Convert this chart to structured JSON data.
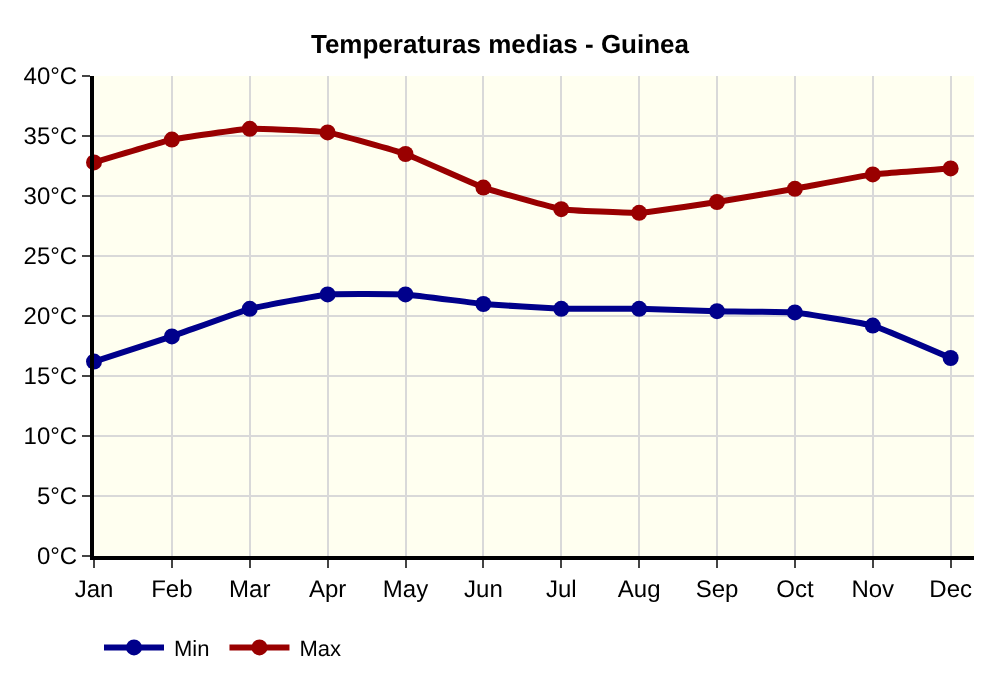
{
  "chart_data": {
    "type": "line",
    "title": "Temperaturas medias - Guinea",
    "categories": [
      "Jan",
      "Feb",
      "Mar",
      "Apr",
      "May",
      "Jun",
      "Jul",
      "Aug",
      "Sep",
      "Oct",
      "Nov",
      "Dec"
    ],
    "series": [
      {
        "name": "Min",
        "color": "#00008b",
        "values": [
          16.2,
          18.3,
          20.6,
          21.8,
          21.8,
          21.0,
          20.6,
          20.6,
          20.4,
          20.3,
          19.2,
          16.5
        ]
      },
      {
        "name": "Max",
        "color": "#990000",
        "values": [
          32.8,
          34.7,
          35.6,
          35.3,
          33.5,
          30.7,
          28.9,
          28.6,
          29.5,
          30.6,
          31.8,
          32.3
        ]
      }
    ],
    "ylim": [
      0,
      40
    ],
    "yticks": [
      {
        "value": 0,
        "label": "0°C"
      },
      {
        "value": 5,
        "label": "5°C"
      },
      {
        "value": 10,
        "label": "10°C"
      },
      {
        "value": 15,
        "label": "15°C"
      },
      {
        "value": 20,
        "label": "20°C"
      },
      {
        "value": 25,
        "label": "25°C"
      },
      {
        "value": 30,
        "label": "30°C"
      },
      {
        "value": 35,
        "label": "35°C"
      },
      {
        "value": 40,
        "label": "40°C"
      }
    ],
    "grid": true,
    "legend": "bottom left",
    "marker": "circle",
    "line_style": "solid"
  }
}
